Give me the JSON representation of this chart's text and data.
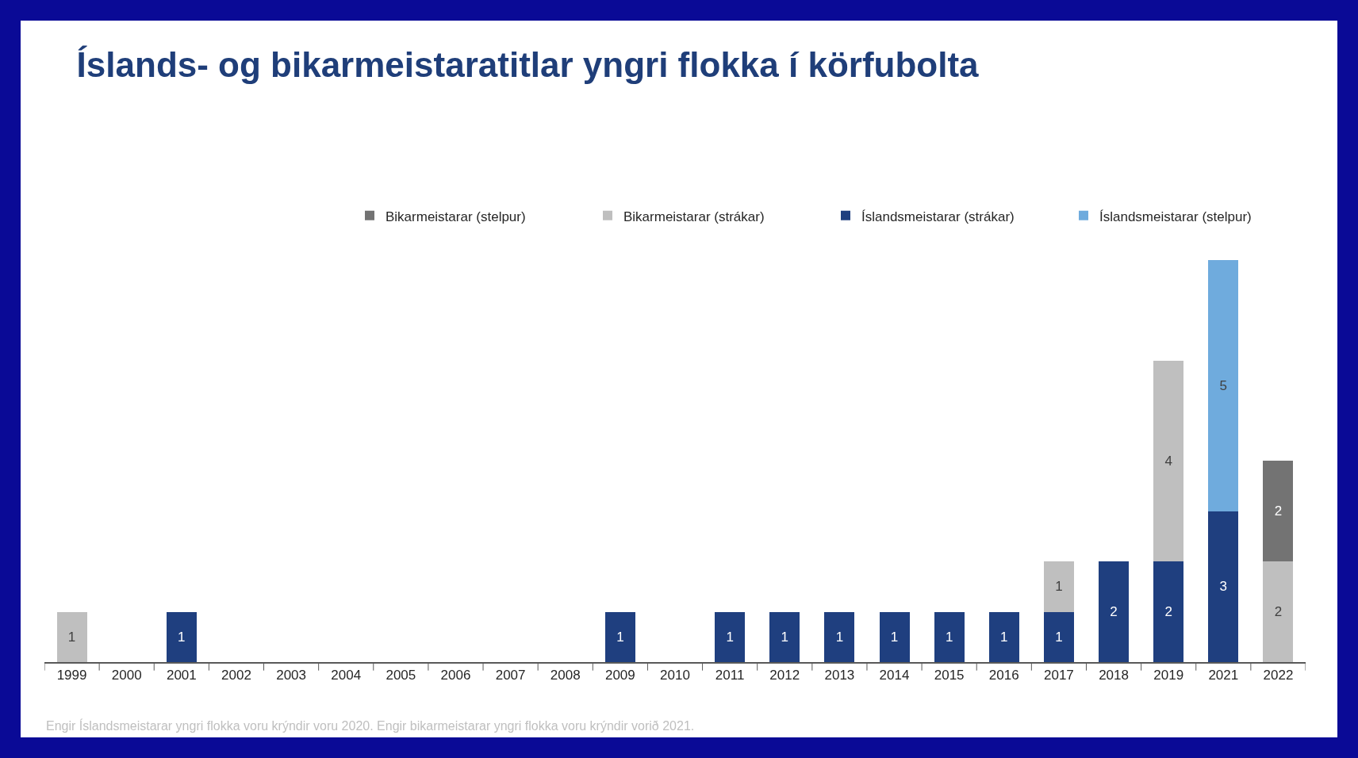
{
  "chart_data": {
    "type": "bar",
    "stacked": true,
    "data_labels": true,
    "legend": "top right",
    "grid": false,
    "title": "Íslands- og bikarmeistaratitlar yngri flokka í körfubolta",
    "categories": [
      "1999",
      "2000",
      "2001",
      "2002",
      "2003",
      "2004",
      "2005",
      "2006",
      "2007",
      "2008",
      "2009",
      "2010",
      "2011",
      "2012",
      "2013",
      "2014",
      "2015",
      "2016",
      "2017",
      "2018",
      "2019",
      "2021",
      "2022"
    ],
    "series": [
      {
        "name": "Íslandsmeistarar (strákar)",
        "color": "#1f3f7f",
        "values": [
          null,
          null,
          1,
          null,
          null,
          null,
          null,
          null,
          null,
          null,
          1,
          null,
          1,
          1,
          1,
          1,
          1,
          1,
          1,
          2,
          2,
          3,
          null
        ]
      },
      {
        "name": "Bikarmeistarar (strákar)",
        "color": "#bfbfbf",
        "values": [
          1,
          null,
          null,
          null,
          null,
          null,
          null,
          null,
          null,
          null,
          null,
          null,
          null,
          null,
          null,
          null,
          null,
          null,
          1,
          null,
          4,
          null,
          2
        ]
      },
      {
        "name": "Íslandsmeistarar (stelpur)",
        "color": "#6fabdd",
        "values": [
          null,
          null,
          null,
          null,
          null,
          null,
          null,
          null,
          null,
          null,
          null,
          null,
          null,
          null,
          null,
          null,
          null,
          null,
          null,
          null,
          null,
          5,
          null
        ]
      },
      {
        "name": "Bikarmeistarar (stelpur)",
        "color": "#737373",
        "values": [
          null,
          null,
          null,
          null,
          null,
          null,
          null,
          null,
          null,
          null,
          null,
          null,
          null,
          null,
          null,
          null,
          null,
          null,
          null,
          null,
          null,
          null,
          2
        ]
      }
    ],
    "annotations": [
      "Engir Íslandsmeistarar yngri flokka voru krýndir voru 2020. Engir bikarmeistarar yngri flokka voru krýndir vorið 2021."
    ]
  }
}
